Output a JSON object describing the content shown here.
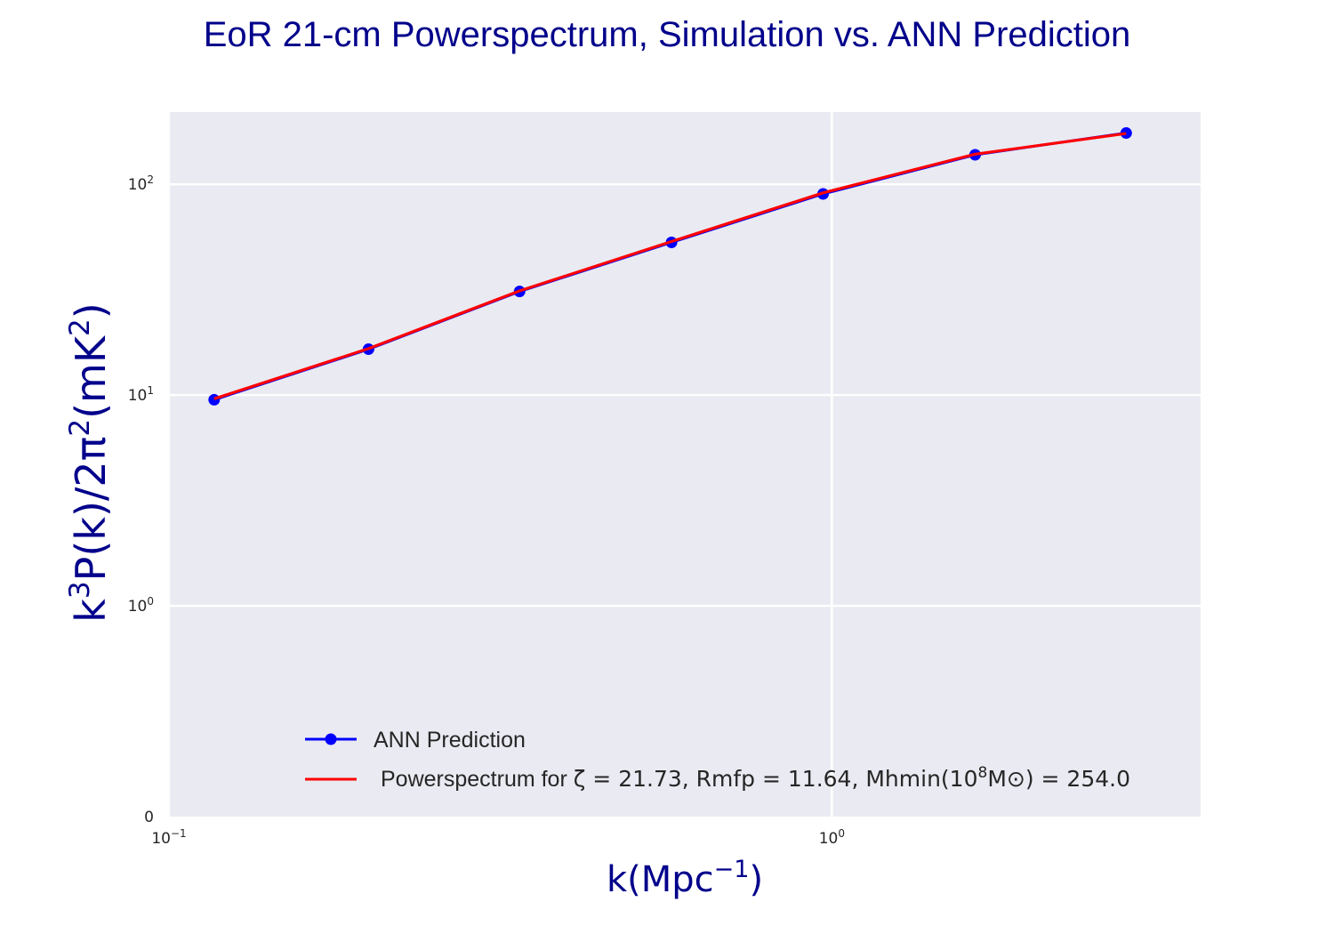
{
  "chart_data": {
    "type": "line",
    "title": "EoR 21-cm Powerspectrum, Simulation vs. ANN Prediction",
    "xlabel": {
      "base": "k(Mpc",
      "sup": "−1",
      "tail": ")"
    },
    "ylabel": {
      "p1": "k",
      "s1": "3",
      "p2": "P(k)/2π",
      "s2": "2",
      "p3": "(mK",
      "s3": "2",
      "p4": ")"
    },
    "x_scale": "log",
    "y_scale": "symlog",
    "xlim": [
      0.1,
      3.6
    ],
    "ylim": [
      0,
      220
    ],
    "grid": true,
    "legend_position": "lower-center",
    "x_ticks": [
      {
        "value": 0.1,
        "base": "10",
        "exp": "−1"
      },
      {
        "value": 1,
        "base": "10",
        "exp": "0"
      }
    ],
    "y_ticks": [
      {
        "value": 0,
        "label": "0"
      },
      {
        "value": 1,
        "base": "10",
        "exp": "0"
      },
      {
        "value": 10,
        "base": "10",
        "exp": "1"
      },
      {
        "value": 100,
        "base": "10",
        "exp": "2"
      }
    ],
    "x": [
      0.117,
      0.2,
      0.338,
      0.573,
      0.97,
      1.645,
      2.78
    ],
    "series": [
      {
        "name": "ANN Prediction",
        "color": "#0000ff",
        "marker": "circle",
        "values": [
          9.5,
          16.5,
          31,
          53,
          90,
          138,
          175
        ]
      },
      {
        "name": "Powerspectrum for ζ = 21.73, Rmfp = 11.64, Mhmin(10⁸M⊙) = 254.0",
        "color": "#ff0000",
        "marker": "none",
        "values": [
          9.6,
          16.6,
          31.2,
          53.5,
          91,
          139,
          174
        ]
      }
    ],
    "legend": {
      "ann": "ANN Prediction",
      "pw_prefix": "Powerspectrum for ",
      "pw_math_a": "ζ = 21.73, Rmfp = 11.64, Mhmin(10",
      "pw_sup": "8",
      "pw_math_b": "M⊙) = 254.0"
    },
    "colors": {
      "title": "#00008b",
      "axis_label": "#00008b",
      "plot_bg": "#eaeaf2",
      "grid": "#ffffff",
      "tick_text": "#262626",
      "legend_text": "#262626"
    }
  }
}
